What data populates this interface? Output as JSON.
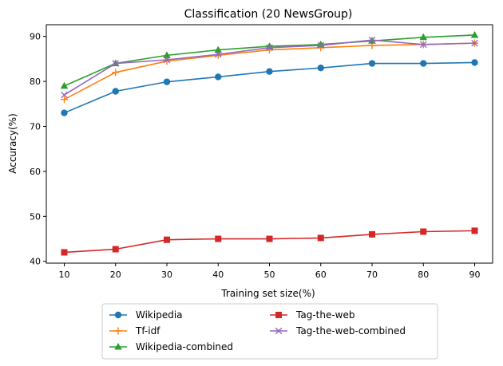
{
  "chart_data": {
    "type": "line",
    "title": "Classification (20 NewsGroup)",
    "xlabel": "Training set size(%)",
    "ylabel": "Accuracy(%)",
    "x": [
      10,
      20,
      30,
      40,
      50,
      60,
      70,
      80,
      90
    ],
    "xlim": [
      6.5,
      93.5
    ],
    "ylim": [
      39.6,
      92.6
    ],
    "xticks": [
      10,
      20,
      30,
      40,
      50,
      60,
      70,
      80,
      90
    ],
    "yticks": [
      40,
      50,
      60,
      70,
      80,
      90
    ],
    "grid": false,
    "legend_position": "bottom-center, outside plot",
    "series": [
      {
        "name": "Wikipedia",
        "color": "#1f77b4",
        "marker": "circle",
        "values": [
          73.0,
          77.8,
          79.9,
          81.0,
          82.2,
          83.0,
          84.0,
          84.0,
          84.2
        ]
      },
      {
        "name": "Tf-idf",
        "color": "#ff7f0e",
        "marker": "plus",
        "values": [
          76.0,
          82.0,
          84.5,
          85.8,
          87.0,
          87.5,
          88.0,
          88.2,
          88.5
        ]
      },
      {
        "name": "Wikipedia-combined",
        "color": "#2ca02c",
        "marker": "triangle",
        "values": [
          79.0,
          84.0,
          85.8,
          87.0,
          87.8,
          88.2,
          89.0,
          89.8,
          90.3
        ]
      },
      {
        "name": "Tag-the-web",
        "color": "#d62728",
        "marker": "square",
        "values": [
          42.0,
          42.7,
          44.8,
          45.0,
          45.0,
          45.2,
          46.0,
          46.6,
          46.8
        ]
      },
      {
        "name": "Tag-the-web-combined",
        "color": "#9467bd",
        "marker": "x",
        "values": [
          77.0,
          84.0,
          84.8,
          86.0,
          87.5,
          88.0,
          89.2,
          88.2,
          88.5
        ]
      }
    ]
  }
}
